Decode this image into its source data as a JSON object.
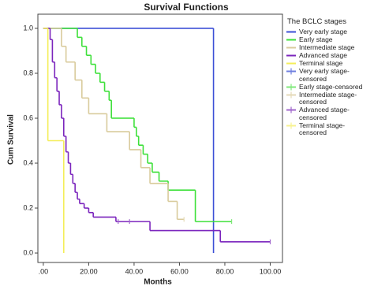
{
  "chart_data": {
    "type": "step",
    "title": "Survival Functions",
    "x_label": "Months",
    "y_label": "Cum Survival",
    "legend_title": "The BCLC stages",
    "xlim": [
      -2.4,
      105.4
    ],
    "ylim": [
      -0.042,
      1.063
    ],
    "xticks": [
      {
        "value": 0,
        "label": ".00"
      },
      {
        "value": 20,
        "label": "20.00"
      },
      {
        "value": 40,
        "label": "40.00"
      },
      {
        "value": 60,
        "label": "60.00"
      },
      {
        "value": 80,
        "label": "80.00"
      },
      {
        "value": 100,
        "label": "100.00"
      }
    ],
    "yticks": [
      {
        "value": 0,
        "label": "0.0"
      },
      0.2,
      0.4,
      0.6,
      0.8,
      {
        "value": 1,
        "label": "1.0"
      }
    ],
    "series": [
      {
        "name": "Very early stage",
        "color": "#3b4fd6",
        "x": [
          0,
          75
        ],
        "values": [
          1,
          0
        ]
      },
      {
        "name": "Early stage",
        "color": "#3ee03a",
        "x": [
          0,
          15,
          17,
          19,
          21,
          23,
          25,
          27,
          29,
          30,
          40,
          41,
          42,
          44,
          46,
          48,
          51,
          55,
          67,
          83
        ],
        "values": [
          1,
          0.96,
          0.92,
          0.88,
          0.84,
          0.8,
          0.76,
          0.72,
          0.68,
          0.6,
          0.56,
          0.52,
          0.48,
          0.44,
          0.4,
          0.36,
          0.32,
          0.28,
          0.14,
          0.14
        ]
      },
      {
        "name": "Intermediate stage",
        "color": "#d9cb9c",
        "x": [
          0,
          8,
          10,
          14,
          17,
          20,
          28,
          38,
          43,
          47,
          55,
          59,
          62
        ],
        "values": [
          1,
          0.92,
          0.85,
          0.77,
          0.69,
          0.62,
          0.54,
          0.46,
          0.38,
          0.31,
          0.23,
          0.15,
          0.15
        ]
      },
      {
        "name": "Advanced stage",
        "color": "#7b25bd",
        "x": [
          0,
          3,
          4,
          5,
          6,
          7,
          8,
          9,
          10,
          11,
          12,
          13,
          14,
          15,
          16,
          18,
          20,
          22,
          32,
          47,
          78,
          100
        ],
        "values": [
          1,
          0.95,
          0.85,
          0.78,
          0.72,
          0.66,
          0.6,
          0.52,
          0.45,
          0.4,
          0.35,
          0.31,
          0.27,
          0.24,
          0.22,
          0.2,
          0.18,
          0.16,
          0.14,
          0.1,
          0.05,
          0.05
        ]
      },
      {
        "name": "Terminal stage",
        "color": "#f4ee5a",
        "x": [
          0,
          2,
          9
        ],
        "values": [
          1,
          0.5,
          0
        ]
      }
    ],
    "censored_series": [
      {
        "name": "Very early stage-censored",
        "color": "#6f7fe0",
        "x": [],
        "values": []
      },
      {
        "name": "Early stage-censored",
        "color": "#7fe87a",
        "x": [
          83
        ],
        "values": [
          0.14
        ]
      },
      {
        "name": "Intermediate stage-censored",
        "color": "#e4dab8",
        "x": [
          62
        ],
        "values": [
          0.15
        ]
      },
      {
        "name": "Advanced stage-censored",
        "color": "#a066cc",
        "x": [
          33,
          38,
          100
        ],
        "values": [
          0.14,
          0.14,
          0.05
        ]
      },
      {
        "name": "Terminal stage-censored",
        "color": "#f7f290",
        "x": [],
        "values": []
      }
    ]
  }
}
